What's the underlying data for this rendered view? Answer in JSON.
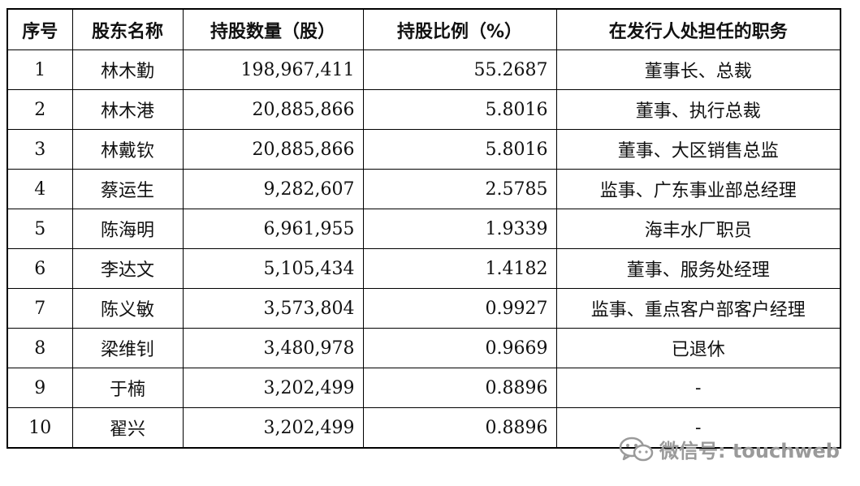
{
  "table": {
    "headers": [
      "序号",
      "股东名称",
      "持股数量（股）",
      "持股比例（%）",
      "在发行人处担任的职务"
    ],
    "rows": [
      [
        "1",
        "林木勤",
        "198,967,411",
        "55.2687",
        "董事长、总裁"
      ],
      [
        "2",
        "林木港",
        "20,885,866",
        "5.8016",
        "董事、执行总裁"
      ],
      [
        "3",
        "林戴钦",
        "20,885,866",
        "5.8016",
        "董事、大区销售总监"
      ],
      [
        "4",
        "蔡运生",
        "9,282,607",
        "2.5785",
        "监事、广东事业部总经理"
      ],
      [
        "5",
        "陈海明",
        "6,961,955",
        "1.9339",
        "海丰水厂职员"
      ],
      [
        "6",
        "李达文",
        "5,105,434",
        "1.4182",
        "董事、服务处经理"
      ],
      [
        "7",
        "陈义敏",
        "3,573,804",
        "0.9927",
        "监事、重点客户部客户经理"
      ],
      [
        "8",
        "梁维钊",
        "3,480,978",
        "0.9669",
        "已退休"
      ],
      [
        "9",
        "于楠",
        "3,202,499",
        "0.8896",
        "-"
      ],
      [
        "10",
        "翟兴",
        "3,202,499",
        "0.8896",
        "-"
      ]
    ]
  },
  "watermark": {
    "text": "微信号: touchweb",
    "icon": "wechat-icon",
    "color": "#9a9a9a"
  }
}
